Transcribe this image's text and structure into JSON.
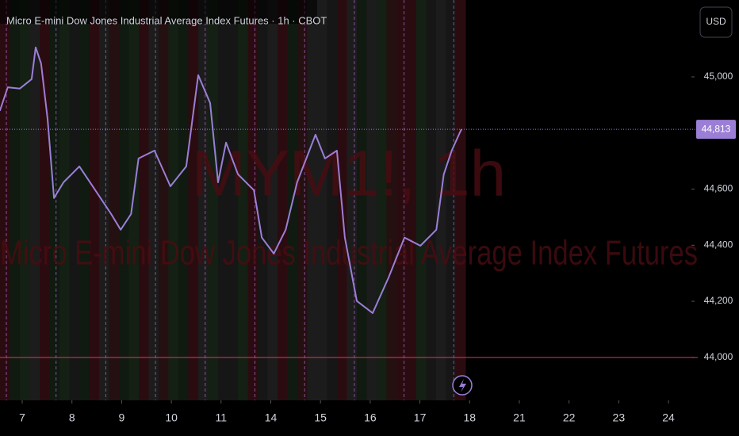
{
  "chart_data": {
    "type": "line",
    "title": "Micro E-mini Dow Jones Industrial Average Index Futures · 1h · CBOT",
    "watermark_symbol": "MYM1!, 1h",
    "watermark_name": "Micro E-mini Dow Jones Industrial Average Index Futures",
    "currency": "USD",
    "series": [
      {
        "name": "MYM1!",
        "color": "#9b7fd6",
        "x": [
          -0.45,
          -0.29,
          -0.05,
          0.19,
          0.27,
          0.38,
          0.51,
          0.64,
          0.83,
          1.15,
          1.47,
          1.79,
          1.98,
          2.19,
          2.34,
          2.66,
          2.98,
          3.3,
          3.54,
          3.78,
          3.94,
          4.1,
          4.34,
          4.66,
          4.82,
          5.06,
          5.3,
          5.53,
          5.9,
          6.09,
          6.33,
          6.49,
          6.73,
          7.05,
          7.37,
          7.69,
          8.01,
          8.33,
          8.48,
          8.64,
          8.82,
          8.84
        ],
        "values": [
          44879,
          44963,
          44958,
          44992,
          45105,
          45048,
          44850,
          44568,
          44624,
          44681,
          44596,
          44511,
          44455,
          44511,
          44709,
          44737,
          44610,
          44681,
          45006,
          44907,
          44624,
          44766,
          44653,
          44596,
          44427,
          44370,
          44455,
          44624,
          44794,
          44709,
          44737,
          44427,
          44201,
          44158,
          44285,
          44427,
          44398,
          44455,
          44653,
          44737,
          44808,
          44813
        ]
      }
    ],
    "last_price": {
      "value": 44813,
      "label": "44,813"
    },
    "hline": 44000,
    "xlim": [
      -0.447,
      13.43
    ],
    "xticks": [
      {
        "value": 0,
        "label": "7"
      },
      {
        "value": 1,
        "label": "8"
      },
      {
        "value": 2,
        "label": "9"
      },
      {
        "value": 3,
        "label": "10"
      },
      {
        "value": 4,
        "label": "11"
      },
      {
        "value": 5,
        "label": "14"
      },
      {
        "value": 6,
        "label": "15"
      },
      {
        "value": 7,
        "label": "16"
      },
      {
        "value": 8,
        "label": "17"
      },
      {
        "value": 9,
        "label": "18"
      },
      {
        "value": 10,
        "label": "21"
      },
      {
        "value": 11,
        "label": "22"
      },
      {
        "value": 12,
        "label": "23"
      },
      {
        "value": 13,
        "label": "24"
      }
    ],
    "ylim": [
      43847,
      45274
    ],
    "yticks": [
      {
        "value": 44000,
        "label": "44,000"
      },
      {
        "value": 44200,
        "label": "44,200"
      },
      {
        "value": 44400,
        "label": "44,400"
      },
      {
        "value": 44600,
        "label": "44,600"
      },
      {
        "value": 45000,
        "label": "45,000"
      }
    ]
  }
}
